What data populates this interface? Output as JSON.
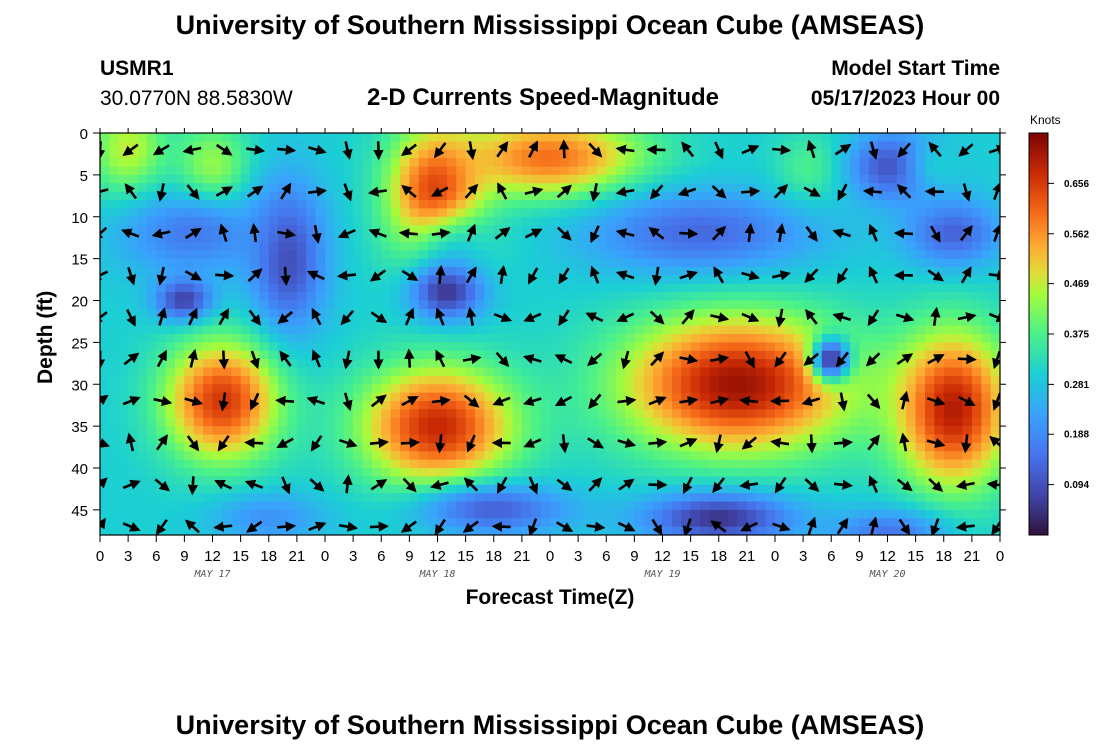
{
  "chart_data": {
    "type": "heatmap",
    "title": "University of Southern Mississippi Ocean Cube (AMSEAS)",
    "station": "USMR1",
    "location": "30.0770N  88.5830W",
    "subtitle": "2-D Currents Speed-Magnitude",
    "model_start_label": "Model Start Time",
    "model_start_value": "05/17/2023 Hour 00",
    "xlabel": "Forecast Time(Z)",
    "ylabel": "Depth (ft)",
    "x_tick_labels": [
      "0",
      "3",
      "6",
      "9",
      "12",
      "15",
      "18",
      "21",
      "0",
      "3",
      "6",
      "9",
      "12",
      "15",
      "18",
      "21",
      "0",
      "3",
      "6",
      "9",
      "12",
      "15",
      "18",
      "21",
      "0",
      "3",
      "6",
      "9",
      "12",
      "15",
      "18",
      "21",
      "0"
    ],
    "x_range_hours": [
      0,
      96
    ],
    "date_labels": [
      {
        "text": "MAY 17",
        "hour": 12
      },
      {
        "text": "MAY 18",
        "hour": 36
      },
      {
        "text": "MAY 19",
        "hour": 60
      },
      {
        "text": "MAY 20",
        "hour": 84
      }
    ],
    "y_ticks": [
      0,
      5,
      10,
      15,
      20,
      25,
      30,
      35,
      40,
      45
    ],
    "y_range_ft": [
      0,
      48
    ],
    "colorbar": {
      "unit": "Knots",
      "range": [
        0.0,
        0.75
      ],
      "tick_labels": [
        "0.656",
        "0.562",
        "0.469",
        "0.375",
        "0.281",
        "0.188",
        "0.094"
      ],
      "tick_values": [
        0.656,
        0.562,
        0.469,
        0.375,
        0.281,
        0.188,
        0.094
      ]
    },
    "speed_features_knots": [
      {
        "t": 3,
        "d": 2,
        "speed": 0.47,
        "sx": 4,
        "sy": 6
      },
      {
        "t": 12,
        "d": 5,
        "speed": 0.46,
        "sx": 4,
        "sy": 6
      },
      {
        "t": 20,
        "d": 15,
        "speed": 0.08,
        "sx": 4,
        "sy": 9
      },
      {
        "t": 10,
        "d": 12,
        "speed": 0.16,
        "sx": 8,
        "sy": 5
      },
      {
        "t": 9,
        "d": 20,
        "speed": 0.05,
        "sx": 3,
        "sy": 2.5
      },
      {
        "t": 36,
        "d": 8,
        "speed": 0.7,
        "sx": 5,
        "sy": 8
      },
      {
        "t": 48,
        "d": 3,
        "speed": 0.6,
        "sx": 10,
        "sy": 5
      },
      {
        "t": 39,
        "d": 14,
        "speed": 0.32,
        "sx": 7,
        "sy": 5
      },
      {
        "t": 37,
        "d": 19,
        "speed": 0.05,
        "sx": 4,
        "sy": 3.5
      },
      {
        "t": 64,
        "d": 12,
        "speed": 0.13,
        "sx": 12,
        "sy": 5
      },
      {
        "t": 76,
        "d": 4,
        "speed": 0.38,
        "sx": 4,
        "sy": 4
      },
      {
        "t": 85,
        "d": 4,
        "speed": 0.07,
        "sx": 5,
        "sy": 4
      },
      {
        "t": 90,
        "d": 4,
        "speed": 0.3,
        "sx": 4,
        "sy": 4
      },
      {
        "t": 91,
        "d": 12,
        "speed": 0.12,
        "sx": 5,
        "sy": 4
      },
      {
        "t": 13,
        "d": 32,
        "speed": 0.66,
        "sx": 6,
        "sy": 7
      },
      {
        "t": 36,
        "d": 35,
        "speed": 0.68,
        "sx": 8,
        "sy": 7
      },
      {
        "t": 68,
        "d": 30,
        "speed": 0.72,
        "sx": 12,
        "sy": 8
      },
      {
        "t": 91,
        "d": 33,
        "speed": 0.7,
        "sx": 6,
        "sy": 9
      },
      {
        "t": 78,
        "d": 27,
        "speed": 0.05,
        "sx": 2,
        "sy": 2.5
      },
      {
        "t": 66,
        "d": 46,
        "speed": 0.05,
        "sx": 8,
        "sy": 3
      },
      {
        "t": 42,
        "d": 45,
        "speed": 0.12,
        "sx": 8,
        "sy": 3
      },
      {
        "t": 18,
        "d": 46,
        "speed": 0.2,
        "sx": 6,
        "sy": 3
      },
      {
        "t": 84,
        "d": 48,
        "speed": 0.15,
        "sx": 6,
        "sy": 3
      }
    ],
    "vector_grid": {
      "hours_start": 0,
      "hours_step": 3.3,
      "depths_ft": [
        2,
        7,
        12,
        17,
        22,
        27,
        32,
        37,
        42,
        47
      ]
    }
  },
  "footer_title": "University of Southern Mississippi Ocean Cube (AMSEAS)"
}
